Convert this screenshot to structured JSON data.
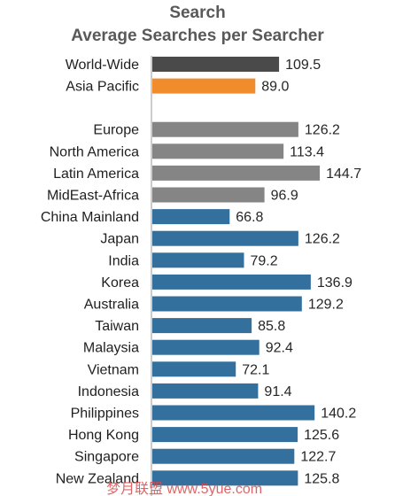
{
  "chart_data": {
    "type": "bar",
    "orientation": "horizontal",
    "title": "Search",
    "subtitle": "Average Searches per Searcher",
    "xlabel": "",
    "ylabel": "",
    "xlim": [
      0,
      150
    ],
    "grid": false,
    "legend": "none",
    "groups": [
      {
        "color": "#4a4a4a",
        "items": [
          {
            "label": "World-Wide",
            "value": 109.5,
            "display": "109.5"
          }
        ]
      },
      {
        "color": "#f08c2c",
        "items": [
          {
            "label": "Asia Pacific",
            "value": 89.0,
            "display": "89.0"
          }
        ]
      },
      {
        "color": "#858585",
        "items": [
          {
            "label": "Europe",
            "value": 126.2,
            "display": "126.2"
          },
          {
            "label": "North America",
            "value": 113.4,
            "display": "113.4"
          },
          {
            "label": "Latin America",
            "value": 144.7,
            "display": "144.7"
          },
          {
            "label": "MidEast-Africa",
            "value": 96.9,
            "display": "96.9"
          }
        ]
      },
      {
        "color": "#34709e",
        "items": [
          {
            "label": "China Mainland",
            "value": 66.8,
            "display": "66.8"
          },
          {
            "label": "Japan",
            "value": 126.2,
            "display": "126.2"
          },
          {
            "label": "India",
            "value": 79.2,
            "display": "79.2"
          },
          {
            "label": "Korea",
            "value": 136.9,
            "display": "136.9"
          },
          {
            "label": "Australia",
            "value": 129.2,
            "display": "129.2"
          },
          {
            "label": "Taiwan",
            "value": 85.8,
            "display": "85.8"
          },
          {
            "label": "Malaysia",
            "value": 92.4,
            "display": "92.4"
          },
          {
            "label": "Vietnam",
            "value": 72.1,
            "display": "72.1"
          },
          {
            "label": "Indonesia",
            "value": 91.4,
            "display": "91.4"
          },
          {
            "label": "Philippines",
            "value": 140.2,
            "display": "140.2"
          },
          {
            "label": "Hong Kong",
            "value": 125.6,
            "display": "125.6"
          },
          {
            "label": "Singapore",
            "value": 122.7,
            "display": "122.7"
          },
          {
            "label": "New Zealand",
            "value": 125.8,
            "display": "125.8"
          }
        ]
      }
    ]
  },
  "watermark": "梦月联盟 www.5yue.com"
}
